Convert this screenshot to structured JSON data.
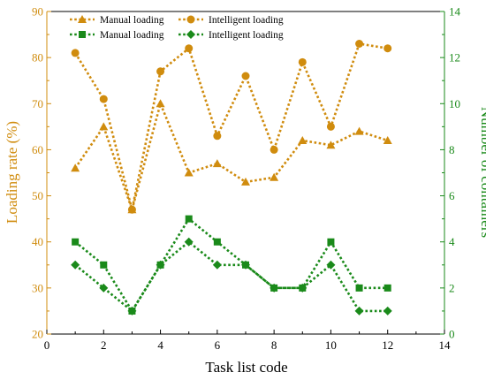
{
  "chart_data": {
    "type": "line",
    "xlabel": "Task list code",
    "ylabel_left": "Loading rate (%)",
    "ylabel_right": "Number of containers",
    "xlim": [
      0,
      14
    ],
    "x_ticks": [
      "0",
      "2",
      "4",
      "6",
      "8",
      "10",
      "12",
      "14"
    ],
    "ylim_left": [
      20,
      90
    ],
    "y_left_ticks": [
      "20",
      "30",
      "40",
      "50",
      "60",
      "70",
      "80",
      "90"
    ],
    "ylim_right": [
      0,
      14
    ],
    "y_right_ticks": [
      "0",
      "2",
      "4",
      "6",
      "8",
      "10",
      "12",
      "14"
    ],
    "grid": false,
    "legend_placement": "top-left",
    "x": [
      1,
      2,
      3,
      4,
      5,
      6,
      7,
      8,
      9,
      10,
      11,
      12
    ],
    "series": [
      {
        "name": "Manual loading",
        "axis": "left",
        "marker": "triangle",
        "color": "#d08c0e",
        "values": [
          56,
          65,
          47,
          70,
          55,
          57,
          53,
          54,
          62,
          61,
          64,
          62
        ]
      },
      {
        "name": "Intelligent loading",
        "axis": "left",
        "marker": "circle",
        "color": "#d08c0e",
        "values": [
          81,
          71,
          47,
          77,
          82,
          63,
          76,
          60,
          79,
          65,
          83,
          82
        ]
      },
      {
        "name": "Manual loading",
        "axis": "right",
        "marker": "square",
        "color": "#1a8a1a",
        "values": [
          4,
          3,
          1,
          3,
          5,
          4,
          3,
          2,
          2,
          4,
          2,
          2
        ]
      },
      {
        "name": "Intelligent loading",
        "axis": "right",
        "marker": "diamond",
        "color": "#1a8a1a",
        "values": [
          3,
          2,
          1,
          3,
          4,
          3,
          3,
          2,
          2,
          3,
          1,
          1
        ]
      }
    ],
    "colors": {
      "left_axis": "#d08c0e",
      "right_axis": "#1a8a1a",
      "bottom_axis": "#000000"
    }
  }
}
